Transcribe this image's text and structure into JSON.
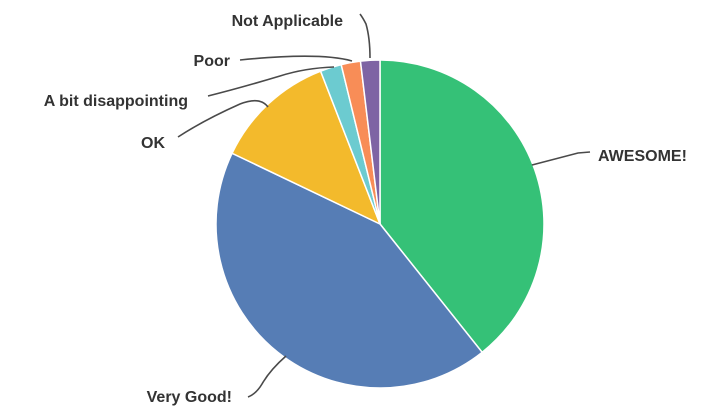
{
  "chart_data": {
    "type": "pie",
    "title": "",
    "slices": [
      {
        "label": "AWESOME!",
        "value": 39.3,
        "color": "#35c177"
      },
      {
        "label": "Very Good!",
        "value": 42.8,
        "color": "#567db5"
      },
      {
        "label": "OK",
        "value": 12.0,
        "color": "#f3ba2c"
      },
      {
        "label": "A bit disappointing",
        "value": 2.1,
        "color": "#6ccbd0"
      },
      {
        "label": "Poor",
        "value": 1.9,
        "color": "#f88d57"
      },
      {
        "label": "Not Applicable",
        "value": 1.9,
        "color": "#7e64a4"
      }
    ],
    "start_angle_deg": 0,
    "direction": "clockwise",
    "legend": "none",
    "labels": "outside with leader lines"
  }
}
